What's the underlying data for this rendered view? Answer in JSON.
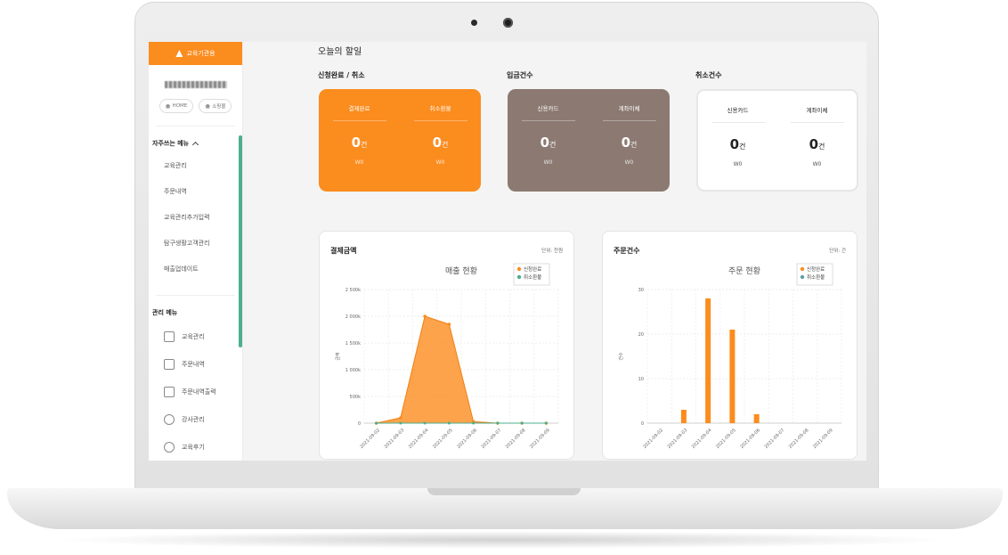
{
  "sidebar": {
    "brand_label": "교육기관용",
    "home_label": "HOME",
    "shop_label": "쇼핑몰",
    "favorites_title": "자주쓰는 메뉴",
    "favorites": [
      "교육관리",
      "주문내역",
      "교육관리추가입력",
      "탐구생활고객관리",
      "매출업데이트"
    ],
    "management_title": "관리 메뉴",
    "management": [
      "교육관리",
      "주문내역",
      "주문내역출력",
      "강사관리",
      "교육후기"
    ]
  },
  "todo": {
    "title": "오늘의 할일",
    "groups": [
      {
        "title": "신청완료 / 취소",
        "items": [
          {
            "label": "결제완료",
            "count": "0",
            "unit": "건",
            "won": "W0"
          },
          {
            "label": "취소환불",
            "count": "0",
            "unit": "건",
            "won": "W0"
          }
        ]
      },
      {
        "title": "입금건수",
        "items": [
          {
            "label": "신용카드",
            "count": "0",
            "unit": "건",
            "won": "W0"
          },
          {
            "label": "계좌이체",
            "count": "0",
            "unit": "건",
            "won": "W0"
          }
        ]
      },
      {
        "title": "취소건수",
        "items": [
          {
            "label": "신용카드",
            "count": "0",
            "unit": "건",
            "won": "W0"
          },
          {
            "label": "계좌이체",
            "count": "0",
            "unit": "건",
            "won": "W0"
          }
        ]
      }
    ]
  },
  "panels": {
    "sales": {
      "title": "결제금액",
      "unit": "단위: 천원"
    },
    "orders": {
      "title": "주문건수",
      "unit": "단위: 건"
    }
  },
  "colors": {
    "orange": "#fb8c1e",
    "brown": "#8c7a72",
    "teal": "#4caf91",
    "blue_gray": "#5f9ea0"
  },
  "chart_data": [
    {
      "type": "area",
      "title": "매출 현황",
      "ylabel": "금액",
      "categories": [
        "2021-09-02",
        "2021-09-03",
        "2021-09-04",
        "2021-09-05",
        "2021-09-06",
        "2021-09-07",
        "2021-09-08",
        "2021-09-09"
      ],
      "series": [
        {
          "name": "신청완료",
          "values": [
            0,
            100,
            2000,
            1850,
            30,
            0,
            0,
            0
          ],
          "color": "#fb8c1e"
        },
        {
          "name": "취소환불",
          "values": [
            0,
            0,
            0,
            0,
            0,
            0,
            0,
            0
          ],
          "color": "#4caf91"
        }
      ],
      "ylim": [
        0,
        2500
      ],
      "yticks": [
        0,
        500,
        1000,
        1500,
        2000,
        2500
      ],
      "ytick_labels": [
        "0",
        "500k",
        "1 000k",
        "1 500k",
        "2 000k",
        "2 500k"
      ],
      "legend": "top-right",
      "grid": true
    },
    {
      "type": "bar",
      "title": "주문 현황",
      "ylabel": "건수",
      "categories": [
        "2021-09-02",
        "2021-09-03",
        "2021-09-04",
        "2021-09-05",
        "2021-09-06",
        "2021-09-07",
        "2021-09-08",
        "2021-09-09"
      ],
      "series": [
        {
          "name": "신청완료",
          "values": [
            0,
            3,
            28,
            21,
            2,
            0,
            0,
            0
          ],
          "color": "#fb8c1e"
        },
        {
          "name": "취소환불",
          "values": [
            0,
            0,
            0,
            0,
            0,
            0,
            0,
            0
          ],
          "color": "#5f9ea0"
        }
      ],
      "ylim": [
        0,
        30
      ],
      "yticks": [
        0,
        10,
        20,
        30
      ],
      "ytick_labels": [
        "0",
        "10",
        "20",
        "30"
      ],
      "legend": "top-right",
      "grid": true
    }
  ]
}
